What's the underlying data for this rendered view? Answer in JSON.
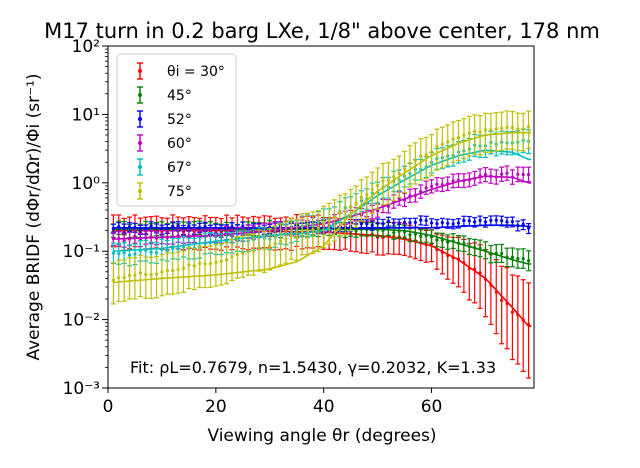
{
  "chart_data": {
    "type": "scatter",
    "title": "M17 turn in 0.2 barg LXe, 1/8\" above center, 178 nm",
    "xlabel": "Viewing angle θr (degrees)",
    "ylabel": "Average BRIDF (dΦr/dΩr)/Φi (sr⁻¹)",
    "xlim": [
      0,
      79
    ],
    "ylim": [
      0.001,
      100
    ],
    "yscale": "log",
    "x_ticks": [
      0,
      20,
      40,
      60
    ],
    "x_tick_labels": [
      "0",
      "20",
      "40",
      "60"
    ],
    "y_ticks": [
      0.001,
      0.01,
      0.1,
      1,
      10,
      100
    ],
    "y_tick_labels": [
      "10⁻³",
      "10⁻²",
      "10⁻¹",
      "10⁰",
      "10¹",
      "10²"
    ],
    "legend_position": "top-left",
    "annotation": "Fit: ρL=0.7679, n=1.5430, γ=0.2032, K=1.33",
    "series": [
      {
        "name": "θi = 30°",
        "color": "#ff0000",
        "anchors": [
          [
            1,
            0.2
          ],
          [
            10,
            0.2
          ],
          [
            20,
            0.2
          ],
          [
            30,
            0.2
          ],
          [
            40,
            0.2
          ],
          [
            50,
            0.17
          ],
          [
            55,
            0.15
          ],
          [
            60,
            0.12
          ],
          [
            65,
            0.075
          ],
          [
            70,
            0.04
          ],
          [
            75,
            0.013
          ],
          [
            78,
            0.0085
          ]
        ],
        "fit": [
          [
            1,
            0.2
          ],
          [
            20,
            0.2
          ],
          [
            40,
            0.19
          ],
          [
            50,
            0.17
          ],
          [
            55,
            0.15
          ],
          [
            60,
            0.12
          ],
          [
            65,
            0.075
          ],
          [
            70,
            0.04
          ],
          [
            75,
            0.015
          ],
          [
            78,
            0.008
          ]
        ],
        "err_low": 0.55,
        "err_high": 1.6,
        "err_tail": 3
      },
      {
        "name": "45°",
        "color": "#008000",
        "anchors": [
          [
            1,
            0.21
          ],
          [
            20,
            0.21
          ],
          [
            40,
            0.21
          ],
          [
            50,
            0.21
          ],
          [
            55,
            0.19
          ],
          [
            60,
            0.16
          ],
          [
            65,
            0.13
          ],
          [
            70,
            0.1
          ],
          [
            75,
            0.08
          ],
          [
            78,
            0.075
          ]
        ],
        "fit": [
          [
            1,
            0.21
          ],
          [
            20,
            0.21
          ],
          [
            40,
            0.21
          ],
          [
            50,
            0.21
          ],
          [
            55,
            0.2
          ],
          [
            60,
            0.17
          ],
          [
            65,
            0.13
          ],
          [
            70,
            0.1
          ],
          [
            75,
            0.075
          ],
          [
            78,
            0.065
          ]
        ],
        "err_low": 0.8,
        "err_high": 1.25,
        "err_tail": 1.5
      },
      {
        "name": "52°",
        "color": "#0000ff",
        "anchors": [
          [
            1,
            0.22
          ],
          [
            20,
            0.22
          ],
          [
            40,
            0.22
          ],
          [
            50,
            0.25
          ],
          [
            55,
            0.27
          ],
          [
            60,
            0.27
          ],
          [
            65,
            0.26
          ],
          [
            70,
            0.28
          ],
          [
            75,
            0.26
          ],
          [
            78,
            0.23
          ]
        ],
        "fit": [
          [
            1,
            0.22
          ],
          [
            20,
            0.22
          ],
          [
            40,
            0.22
          ],
          [
            50,
            0.22
          ],
          [
            55,
            0.22
          ],
          [
            60,
            0.22
          ],
          [
            65,
            0.23
          ],
          [
            70,
            0.24
          ],
          [
            75,
            0.24
          ],
          [
            78,
            0.23
          ]
        ],
        "err_low": 0.85,
        "err_high": 1.15,
        "err_tail": 1.1
      },
      {
        "name": "60°",
        "color": "#bf00bf",
        "anchors": [
          [
            1,
            0.15
          ],
          [
            10,
            0.16
          ],
          [
            20,
            0.17
          ],
          [
            30,
            0.2
          ],
          [
            40,
            0.24
          ],
          [
            45,
            0.32
          ],
          [
            50,
            0.42
          ],
          [
            55,
            0.6
          ],
          [
            60,
            0.85
          ],
          [
            65,
            1.1
          ],
          [
            70,
            1.3
          ],
          [
            75,
            1.3
          ],
          [
            78,
            1.25
          ]
        ],
        "fit": [
          [
            1,
            0.15
          ],
          [
            10,
            0.16
          ],
          [
            20,
            0.17
          ],
          [
            30,
            0.2
          ],
          [
            40,
            0.25
          ],
          [
            45,
            0.32
          ],
          [
            50,
            0.42
          ],
          [
            55,
            0.58
          ],
          [
            60,
            0.8
          ],
          [
            65,
            1.05
          ],
          [
            70,
            1.25
          ],
          [
            75,
            1.2
          ],
          [
            78,
            1.0
          ]
        ],
        "err_low": 0.8,
        "err_high": 1.25,
        "err_tail": 1.1
      },
      {
        "name": "67°",
        "color": "#00bfbf",
        "anchors": [
          [
            1,
            0.09
          ],
          [
            10,
            0.1
          ],
          [
            20,
            0.13
          ],
          [
            30,
            0.16
          ],
          [
            40,
            0.28
          ],
          [
            45,
            0.45
          ],
          [
            50,
            0.75
          ],
          [
            55,
            1.2
          ],
          [
            60,
            2.0
          ],
          [
            65,
            2.9
          ],
          [
            70,
            3.7
          ],
          [
            75,
            4.0
          ],
          [
            78,
            3.9
          ]
        ],
        "fit": [
          [
            1,
            0.1
          ],
          [
            10,
            0.11
          ],
          [
            20,
            0.14
          ],
          [
            30,
            0.17
          ],
          [
            35,
            0.18
          ],
          [
            40,
            0.2
          ],
          [
            45,
            0.35
          ],
          [
            50,
            0.65
          ],
          [
            55,
            1.1
          ],
          [
            60,
            1.8
          ],
          [
            65,
            2.5
          ],
          [
            70,
            3.0
          ],
          [
            75,
            2.8
          ],
          [
            78,
            2.2
          ]
        ],
        "err_low": 0.7,
        "err_high": 1.4,
        "err_tail": 1.15
      },
      {
        "name": "75°",
        "color": "#bfbf00",
        "anchors": [
          [
            1,
            0.04
          ],
          [
            10,
            0.05
          ],
          [
            20,
            0.07
          ],
          [
            30,
            0.12
          ],
          [
            40,
            0.25
          ],
          [
            45,
            0.45
          ],
          [
            50,
            0.9
          ],
          [
            55,
            1.6
          ],
          [
            60,
            3.0
          ],
          [
            65,
            4.8
          ],
          [
            70,
            6.0
          ],
          [
            75,
            6.5
          ],
          [
            78,
            6.5
          ]
        ],
        "fit": [
          [
            1,
            0.035
          ],
          [
            10,
            0.04
          ],
          [
            20,
            0.045
          ],
          [
            30,
            0.055
          ],
          [
            35,
            0.07
          ],
          [
            40,
            0.12
          ],
          [
            45,
            0.35
          ],
          [
            50,
            0.75
          ],
          [
            55,
            1.4
          ],
          [
            60,
            2.5
          ],
          [
            65,
            3.8
          ],
          [
            70,
            5.0
          ],
          [
            75,
            5.4
          ],
          [
            78,
            5.4
          ]
        ],
        "err_low": 0.45,
        "err_high": 1.8,
        "err_tail": 0.9
      }
    ]
  }
}
